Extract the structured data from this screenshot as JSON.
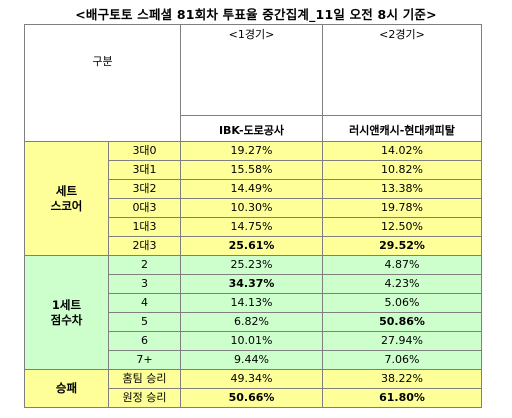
{
  "title": "<배구토토 스페셜 81회차 투표율 중간집계_11일 오전 8시 기준>",
  "header": {
    "gubun": "구분",
    "game1": "<1경기>",
    "game2": "<2경기>",
    "team1": "IBK-도로공사",
    "team2": "러시앤캐시-현대캐피탈"
  },
  "sections": [
    {
      "label_line1": "세트",
      "label_line2": "스코어",
      "rows": [
        {
          "item": "3대0",
          "g1": "19.27%",
          "g2": "14.02%",
          "g1_bold": false,
          "g2_bold": false
        },
        {
          "item": "3대1",
          "g1": "15.58%",
          "g2": "10.82%",
          "g1_bold": false,
          "g2_bold": false
        },
        {
          "item": "3대2",
          "g1": "14.49%",
          "g2": "13.38%",
          "g1_bold": false,
          "g2_bold": false
        },
        {
          "item": "0대3",
          "g1": "10.30%",
          "g2": "19.78%",
          "g1_bold": false,
          "g2_bold": false
        },
        {
          "item": "1대3",
          "g1": "14.75%",
          "g2": "12.50%",
          "g1_bold": false,
          "g2_bold": false
        },
        {
          "item": "2대3",
          "g1": "25.61%",
          "g2": "29.52%",
          "g1_bold": true,
          "g2_bold": true
        }
      ]
    },
    {
      "label_line1": "1세트",
      "label_line2": "점수차",
      "rows": [
        {
          "item": "2",
          "g1": "25.23%",
          "g2": "4.87%",
          "g1_bold": false,
          "g2_bold": false
        },
        {
          "item": "3",
          "g1": "34.37%",
          "g2": "4.23%",
          "g1_bold": true,
          "g2_bold": false
        },
        {
          "item": "4",
          "g1": "14.13%",
          "g2": "5.06%",
          "g1_bold": false,
          "g2_bold": false
        },
        {
          "item": "5",
          "g1": "6.82%",
          "g2": "50.86%",
          "g1_bold": false,
          "g2_bold": true
        },
        {
          "item": "6",
          "g1": "10.01%",
          "g2": "27.94%",
          "g1_bold": false,
          "g2_bold": false
        },
        {
          "item": "7+",
          "g1": "9.44%",
          "g2": "7.06%",
          "g1_bold": false,
          "g2_bold": false
        }
      ]
    },
    {
      "label_line1": "승패",
      "label_line2": "",
      "rows": [
        {
          "item": "홈팀 승리",
          "g1": "49.34%",
          "g2": "38.22%",
          "g1_bold": false,
          "g2_bold": false
        },
        {
          "item": "원정 승리",
          "g1": "50.66%",
          "g2": "61.80%",
          "g1_bold": true,
          "g2_bold": true
        }
      ]
    }
  ],
  "colors": {
    "yellow_fill": "#ffff99",
    "green_fill": "#ccffcc",
    "border": "#7f7f7f"
  }
}
